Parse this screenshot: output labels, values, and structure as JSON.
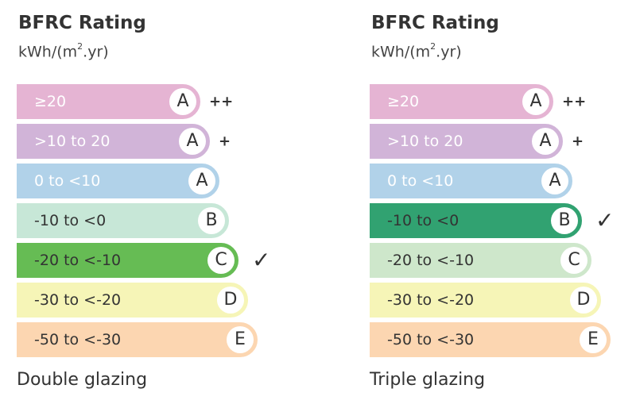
{
  "panels": [
    {
      "title": "BFRC Rating",
      "unit_prefix": "kWh/(m",
      "unit_sup": "2",
      "unit_suffix": ".yr)",
      "caption": "Double glazing",
      "selected_index": 4,
      "check_mark": "✓",
      "bands": [
        {
          "range": "≥20",
          "letter": "A",
          "suffix": "++",
          "color": "#e5b4d3",
          "text_color": "#ffffff"
        },
        {
          "range": ">10 to 20",
          "letter": "A",
          "suffix": "+",
          "color": "#d1b4d8",
          "text_color": "#ffffff"
        },
        {
          "range": "0 to <10",
          "letter": "A",
          "suffix": "",
          "color": "#b1d2e9",
          "text_color": "#ffffff"
        },
        {
          "range": "-10 to <0",
          "letter": "B",
          "suffix": "",
          "color": "#c7e7d7",
          "text_color": "#333333"
        },
        {
          "range": "-20 to <-10",
          "letter": "C",
          "suffix": "",
          "color": "#66bc54",
          "text_color": "#333333"
        },
        {
          "range": "-30 to <-20",
          "letter": "D",
          "suffix": "",
          "color": "#f6f5b7",
          "text_color": "#333333"
        },
        {
          "range": "-50 to <-30",
          "letter": "E",
          "suffix": "",
          "color": "#fcd6b1",
          "text_color": "#333333"
        }
      ]
    },
    {
      "title": "BFRC Rating",
      "unit_prefix": "kWh/(m",
      "unit_sup": "2",
      "unit_suffix": ".yr)",
      "caption": "Triple glazing",
      "selected_index": 3,
      "check_mark": "✓",
      "bands": [
        {
          "range": "≥20",
          "letter": "A",
          "suffix": "++",
          "color": "#e5b4d3",
          "text_color": "#ffffff"
        },
        {
          "range": ">10 to 20",
          "letter": "A",
          "suffix": "+",
          "color": "#d1b4d8",
          "text_color": "#ffffff"
        },
        {
          "range": "0 to <10",
          "letter": "A",
          "suffix": "",
          "color": "#b1d2e9",
          "text_color": "#ffffff"
        },
        {
          "range": "-10 to <0",
          "letter": "B",
          "suffix": "",
          "color": "#31a271",
          "text_color": "#333333"
        },
        {
          "range": "-20 to <-10",
          "letter": "C",
          "suffix": "",
          "color": "#cee7cb",
          "text_color": "#333333"
        },
        {
          "range": "-30 to <-20",
          "letter": "D",
          "suffix": "",
          "color": "#f6f5b7",
          "text_color": "#333333"
        },
        {
          "range": "-50 to <-30",
          "letter": "E",
          "suffix": "",
          "color": "#fcd6b1",
          "text_color": "#333333"
        }
      ]
    }
  ]
}
